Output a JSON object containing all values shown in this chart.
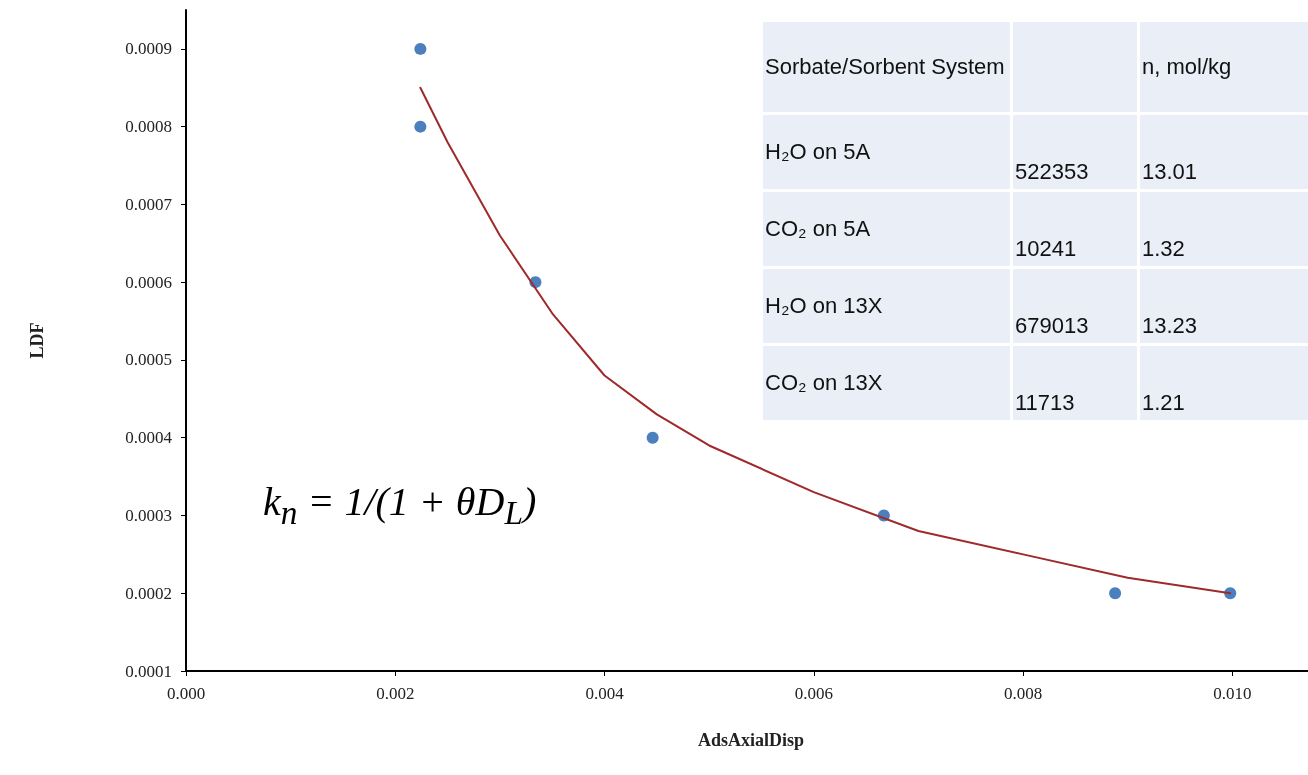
{
  "chart_data": [
    {
      "type": "scatter",
      "xlabel": "AdsAxialDisp",
      "ylabel": "LDF",
      "xlim": [
        0,
        0.0108
      ],
      "ylim": [
        0.0001,
        0.00095
      ],
      "xticks": [
        {
          "value": 0,
          "label": "0.000"
        },
        {
          "value": 0.002,
          "label": "0.002"
        },
        {
          "value": 0.004,
          "label": "0.004"
        },
        {
          "value": 0.006,
          "label": "0.006"
        },
        {
          "value": 0.008,
          "label": "0.008"
        },
        {
          "value": 0.01,
          "label": "0.010"
        }
      ],
      "yticks": [
        0.0001,
        0.0002,
        0.0003,
        0.0004,
        0.0005,
        0.0006,
        0.0007,
        0.0008,
        0.0009
      ],
      "grid": false,
      "marker": "circle",
      "series": [
        {
          "type": "scatter",
          "color": "#1f5fad",
          "x": [
            0.00224,
            0.00224,
            0.00334,
            0.00446,
            0.00667,
            0.00888,
            0.00998
          ],
          "values": [
            0.0009,
            0.0008,
            0.0006,
            0.0004,
            0.0003,
            0.0002,
            0.0002
          ]
        },
        {
          "type": "line",
          "color": "#9e2a2b",
          "marker": "none",
          "line_style": "solid",
          "x": [
            0.00224,
            0.0025,
            0.003,
            0.0035,
            0.004,
            0.0045,
            0.005,
            0.006,
            0.007,
            0.008,
            0.009,
            0.00998
          ],
          "values": [
            0.00085,
            0.00078,
            0.00066,
            0.00056,
            0.00048,
            0.00043,
            0.00039,
            0.00033,
            0.00028,
            0.00025,
            0.00022,
            0.0002
          ]
        }
      ],
      "annotations": [
        "k$_{n}$ = 1/(1 + θD$_{L}$)"
      ]
    },
    {
      "type": "other",
      "categories": [
        "Sorbate/Sorbent System",
        null,
        "n, mol/kg"
      ],
      "cells": [
        [
          "H₂O on 5A",
          "522353",
          "13.01"
        ],
        [
          "CO₂ on 5A",
          "10241",
          "1.32"
        ],
        [
          "H₂O on 13X",
          "679013",
          "13.23"
        ],
        [
          "CO₂ on 13X",
          "11713",
          "1.21"
        ]
      ]
    }
  ]
}
